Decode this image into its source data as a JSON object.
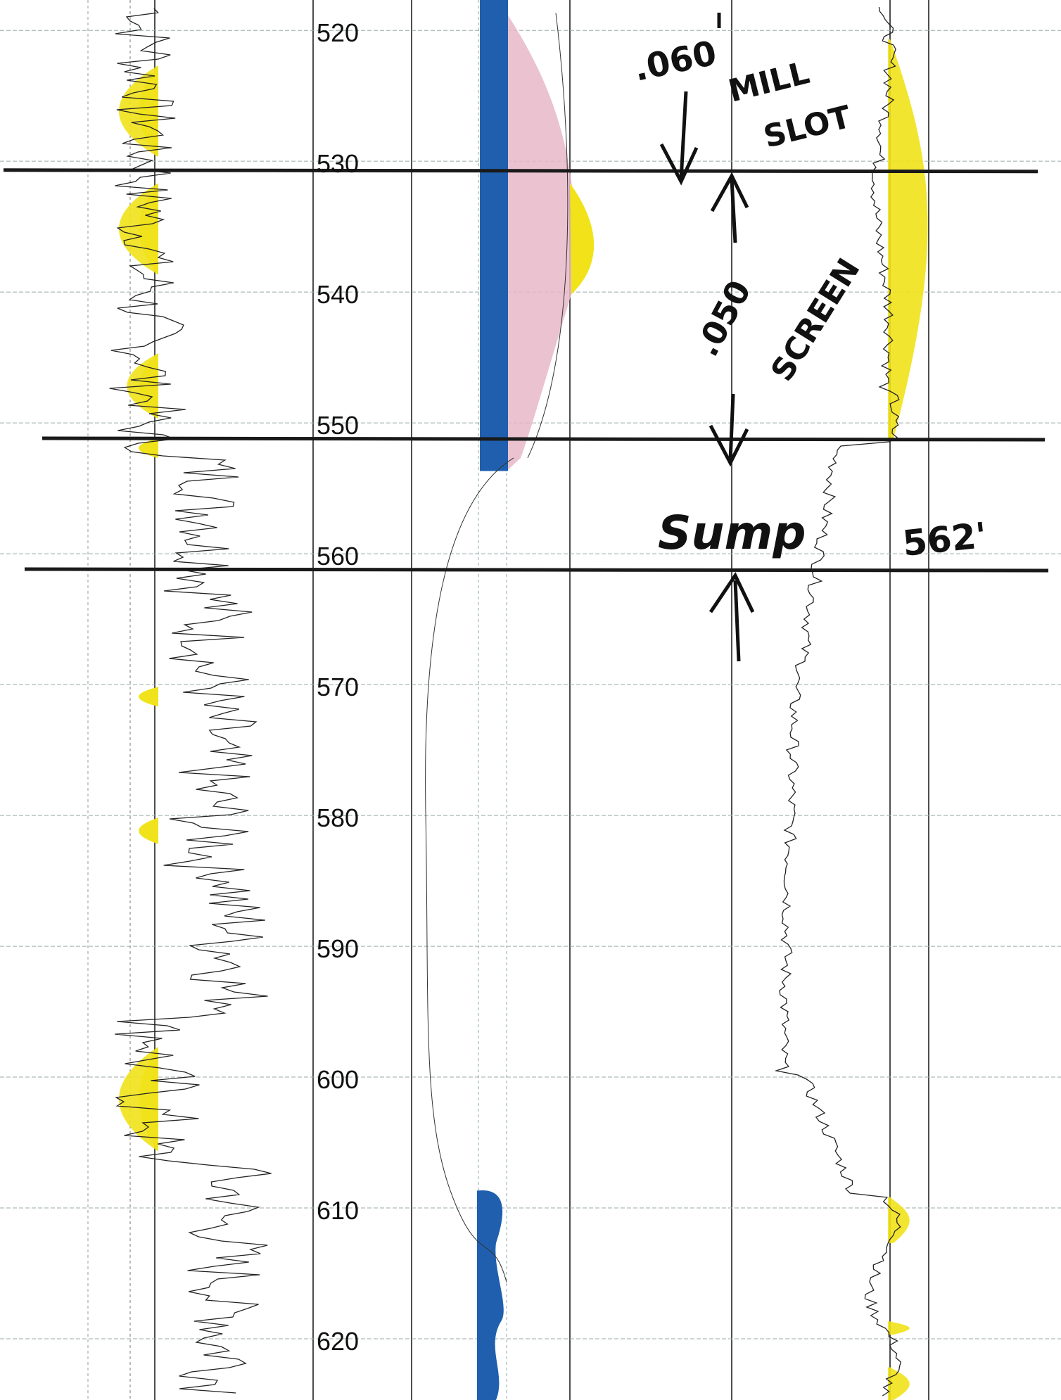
{
  "chart_data": {
    "type": "line",
    "title": "",
    "xlabel": "",
    "ylabel": "",
    "depth_axis": {
      "range": [
        518,
        625
      ],
      "tick_step": 10,
      "tick_labels": [
        "520",
        "530",
        "540",
        "550",
        "560",
        "570",
        "580",
        "590",
        "600",
        "610",
        "620"
      ]
    },
    "grid": true,
    "tracks": [
      {
        "name": "",
        "type": "line",
        "color": "#222222",
        "highlight_color": "#f1e21a"
      },
      {
        "name": "",
        "type": "area",
        "colors": {
          "fill_blue": "#1f5fae",
          "fill_pink": "#e6b7c8",
          "fill_yellow": "#f1e21a"
        }
      },
      {
        "name": "",
        "type": "line",
        "color": "#222222",
        "highlight_color": "#f1e21a"
      }
    ],
    "interval_lines": [
      {
        "depth": 531
      },
      {
        "depth": 551.5
      },
      {
        "depth": 561.5
      }
    ],
    "highlight_intervals_track1": [
      [
        523,
        530
      ],
      [
        532,
        539
      ],
      [
        545,
        550
      ],
      [
        551.5,
        553
      ],
      [
        570.5,
        572
      ],
      [
        580.5,
        582.5
      ],
      [
        598,
        606
      ]
    ],
    "blue_intervals_track2": [
      [
        518,
        554
      ],
      [
        609,
        625
      ]
    ],
    "yellow_intervals_track3": [
      [
        521,
        551.5
      ],
      [
        609.5,
        613
      ],
      [
        619,
        620
      ],
      [
        622.5,
        625
      ]
    ],
    "annotations": {
      "upper_slot": ".060",
      "upper_label_line1": "MILL",
      "upper_label_line2": "SLOT",
      "screen_slot": ".050",
      "screen_label": "SCREEN",
      "sump_label": "Sump",
      "sump_depth": "562'"
    }
  }
}
